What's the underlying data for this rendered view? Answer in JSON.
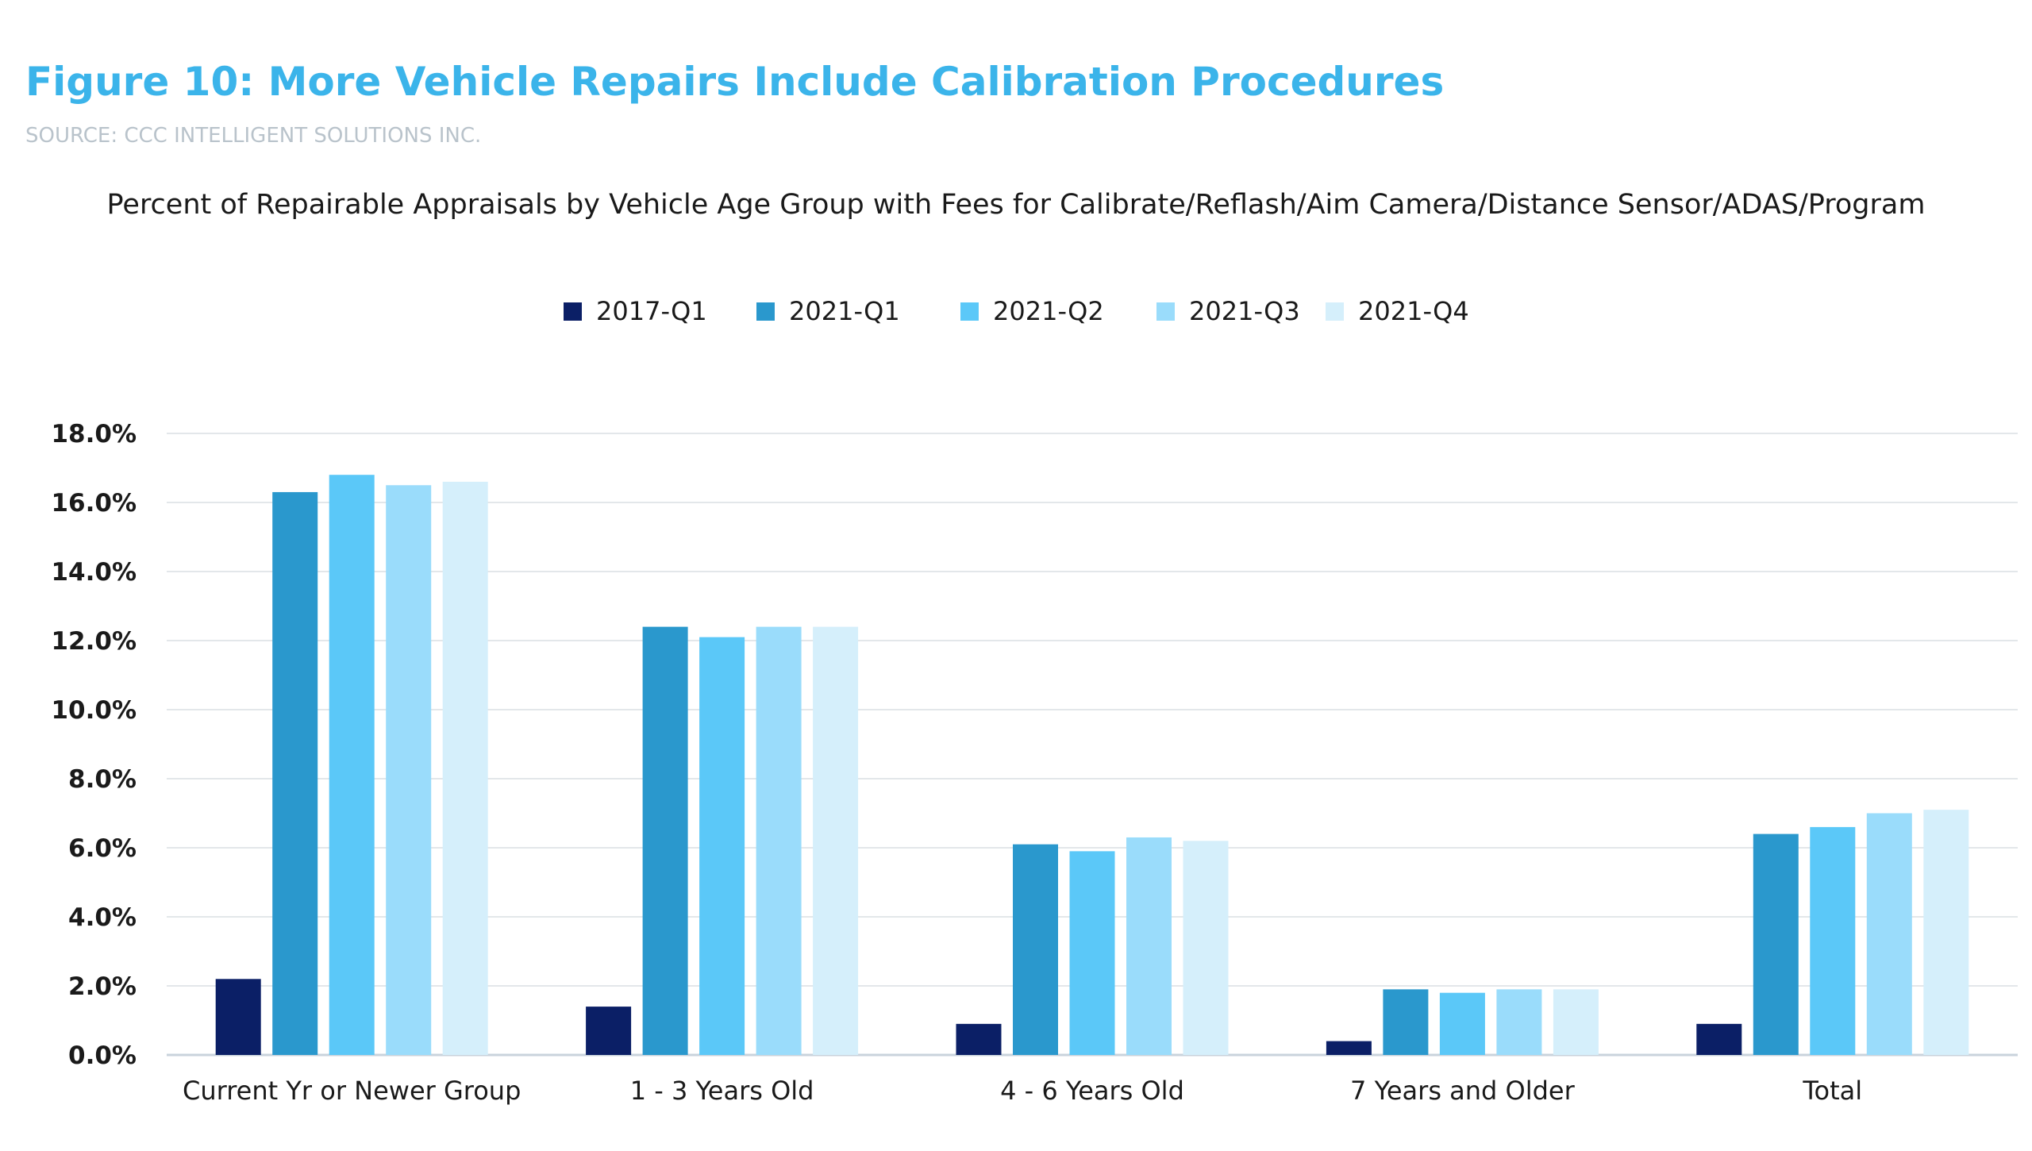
{
  "figure": {
    "title": "Figure 10: More Vehicle Repairs Include Calibration Procedures",
    "source": "SOURCE: CCC INTELLIGENT SOLUTIONS INC."
  },
  "chart_data": {
    "type": "bar",
    "title": "Percent of Repairable Appraisals by Vehicle Age Group with Fees for Calibrate/Reflash/Aim Camera/Distance Sensor/ADAS/Program",
    "xlabel": "",
    "ylabel": "",
    "categories": [
      "Current Yr or Newer Group",
      "1 - 3 Years Old",
      "4 - 6 Years Old",
      "7 Years and Older",
      "Total"
    ],
    "series": [
      {
        "name": "2017-Q1",
        "color": "#0b1f66",
        "values": [
          2.2,
          1.4,
          0.9,
          0.4,
          0.9
        ]
      },
      {
        "name": "2021-Q1",
        "color": "#2a98cd",
        "values": [
          16.3,
          12.4,
          6.1,
          1.9,
          6.4
        ]
      },
      {
        "name": "2021-Q2",
        "color": "#5bc8f8",
        "values": [
          16.8,
          12.1,
          5.9,
          1.8,
          6.6
        ]
      },
      {
        "name": "2021-Q3",
        "color": "#9adcfb",
        "values": [
          16.5,
          12.4,
          6.3,
          1.9,
          7.0
        ]
      },
      {
        "name": "2021-Q4",
        "color": "#d5effb",
        "values": [
          16.6,
          12.4,
          6.2,
          1.9,
          7.1
        ]
      }
    ],
    "ylim": [
      0,
      18
    ],
    "yticks": [
      "0.0%",
      "2.0%",
      "4.0%",
      "6.0%",
      "8.0%",
      "10.0%",
      "12.0%",
      "14.0%",
      "16.0%",
      "18.0%"
    ],
    "grid": true,
    "legend_position": "top-center"
  }
}
